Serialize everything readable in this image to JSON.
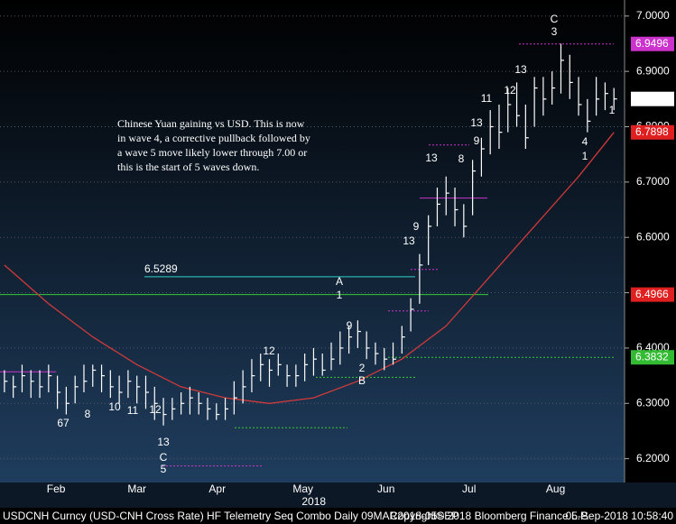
{
  "chart_data": {
    "type": "ohlc",
    "bars": {
      "color": "#ffffff",
      "high": [
        6.36,
        6.35,
        6.37,
        6.36,
        6.36,
        6.37,
        6.35,
        6.33,
        6.35,
        6.37,
        6.37,
        6.37,
        6.36,
        6.35,
        6.36,
        6.35,
        6.35,
        6.33,
        6.31,
        6.31,
        6.32,
        6.33,
        6.32,
        6.31,
        6.3,
        6.31,
        6.34,
        6.36,
        6.38,
        6.39,
        6.38,
        6.39,
        6.37,
        6.37,
        6.39,
        6.4,
        6.39,
        6.41,
        6.43,
        6.44,
        6.45,
        6.43,
        6.41,
        6.4,
        6.41,
        6.44,
        6.49,
        6.57,
        6.64,
        6.69,
        6.71,
        6.69,
        6.66,
        6.74,
        6.78,
        6.83,
        6.84,
        6.87,
        6.88,
        6.84,
        6.89,
        6.89,
        6.9,
        6.95,
        6.93,
        6.89,
        6.85,
        6.89,
        6.88,
        6.87
      ],
      "low": [
        6.32,
        6.31,
        6.32,
        6.31,
        6.31,
        6.32,
        6.29,
        6.28,
        6.3,
        6.32,
        6.33,
        6.32,
        6.31,
        6.3,
        6.31,
        6.3,
        6.29,
        6.27,
        6.26,
        6.27,
        6.28,
        6.28,
        6.28,
        6.27,
        6.27,
        6.27,
        6.28,
        6.3,
        6.32,
        6.34,
        6.33,
        6.35,
        6.33,
        6.33,
        6.34,
        6.35,
        6.35,
        6.36,
        6.37,
        6.39,
        6.4,
        6.38,
        6.37,
        6.36,
        6.37,
        6.39,
        6.43,
        6.48,
        6.55,
        6.62,
        6.64,
        6.62,
        6.6,
        6.64,
        6.71,
        6.75,
        6.76,
        6.79,
        6.8,
        6.76,
        6.8,
        6.82,
        6.84,
        6.86,
        6.85,
        6.82,
        6.79,
        6.82,
        6.83,
        6.83
      ],
      "close": [
        6.34,
        6.33,
        6.35,
        6.34,
        6.33,
        6.35,
        6.32,
        6.3,
        6.33,
        6.34,
        6.36,
        6.35,
        6.33,
        6.32,
        6.34,
        6.33,
        6.32,
        6.3,
        6.28,
        6.29,
        6.3,
        6.31,
        6.3,
        6.29,
        6.28,
        6.29,
        6.31,
        6.33,
        6.35,
        6.37,
        6.36,
        6.37,
        6.35,
        6.35,
        6.37,
        6.38,
        6.36,
        6.38,
        6.4,
        6.42,
        6.43,
        6.4,
        6.39,
        6.38,
        6.38,
        6.42,
        6.47,
        6.55,
        6.62,
        6.66,
        6.68,
        6.65,
        6.62,
        6.72,
        6.76,
        6.8,
        6.79,
        6.84,
        6.82,
        6.78,
        6.87,
        6.85,
        6.87,
        6.92,
        6.88,
        6.84,
        6.81,
        6.85,
        6.86,
        6.8502
      ]
    },
    "moving_average": {
      "color": "#d03a3a",
      "x": [
        0,
        5,
        10,
        15,
        20,
        25,
        30,
        35,
        40,
        45,
        50,
        55,
        60,
        65,
        69
      ],
      "values": [
        6.55,
        6.48,
        6.42,
        6.37,
        6.33,
        6.31,
        6.3,
        6.31,
        6.34,
        6.38,
        6.44,
        6.53,
        6.62,
        6.71,
        6.7898
      ]
    },
    "levels": [
      {
        "value": 6.4966,
        "color": "#33cc33",
        "style": "solid",
        "tag": "#e02020"
      },
      {
        "value": 6.5289,
        "color": "#33cccc",
        "style": "solid",
        "text": true
      },
      {
        "value": 6.9496,
        "color": "#cc33cc",
        "style": "dotted",
        "tag": "#cc33cc"
      },
      {
        "value": 6.3832,
        "color": "#33cc33",
        "style": "dotted",
        "tag": "#33bb33"
      },
      {
        "value": 6.187,
        "color": "#cc33cc",
        "style": "dotted"
      },
      {
        "value": 6.256,
        "color": "#33cc33",
        "style": "dotted"
      },
      {
        "value": 6.347,
        "color": "#33cc33",
        "style": "dotted"
      },
      {
        "value": 6.467,
        "color": "#cc33cc",
        "style": "dotted"
      },
      {
        "value": 6.542,
        "color": "#cc33cc",
        "style": "dotted"
      },
      {
        "value": 6.767,
        "color": "#cc33cc",
        "style": "dotted"
      },
      {
        "value": 6.671,
        "color": "#cc33cc",
        "style": "solid"
      },
      {
        "value": 6.357,
        "color": "#cc33cc",
        "style": "solid"
      }
    ],
    "xlim": [
      -0.5,
      70
    ],
    "ylim": [
      6.157,
      7.029
    ],
    "xticks": [
      {
        "value": 5.85,
        "label": "Feb"
      },
      {
        "value": 15.0,
        "label": "Mar"
      },
      {
        "value": 24.1,
        "label": "Apr"
      },
      {
        "value": 33.8,
        "label": "May"
      },
      {
        "value": 43.2,
        "label": "Jun"
      },
      {
        "value": 52.6,
        "label": "Jul"
      },
      {
        "value": 62.4,
        "label": "Aug"
      }
    ],
    "year_label": "2018",
    "yticks": [
      {
        "value": 6.2,
        "label": "6.2000"
      },
      {
        "value": 6.3,
        "label": "6.3000"
      },
      {
        "value": 6.4,
        "label": "6.4000"
      },
      {
        "value": 6.5,
        "label": "6.5000"
      },
      {
        "value": 6.6,
        "label": "6.6000"
      },
      {
        "value": 6.7,
        "label": "6.7000"
      },
      {
        "value": 6.8,
        "label": "6.8000"
      },
      {
        "value": 6.9,
        "label": "6.9000"
      },
      {
        "value": 7.0,
        "label": "7.0000"
      }
    ],
    "grid": true,
    "note": [
      "Chinese Yuan gaining vs USD.  This is now",
      "in wave 4, a corrective pullback followed by",
      "a wave 5 move likely lower through 7.00 or",
      "this is the start of 5 waves down."
    ],
    "annotations": [
      {
        "text": "13",
        "color": "#e03030"
      },
      {
        "text": "13",
        "color": "#e03030"
      },
      {
        "text": "13",
        "color": "#cc33cc"
      },
      {
        "text": "13",
        "color": "#cc33cc"
      },
      {
        "text": "13",
        "color": "#cc33cc"
      },
      {
        "text": "C",
        "color": "#33cccc"
      },
      {
        "text": "5",
        "color": "#e6d33a"
      },
      {
        "text": "C",
        "color": "#e6d33a"
      },
      {
        "text": "3",
        "color": "#33cccc"
      },
      {
        "text": "A",
        "color": "#e6d33a"
      },
      {
        "text": "1",
        "color": "#33cccc"
      },
      {
        "text": "B",
        "color": "#e6d33a"
      },
      {
        "text": "2",
        "color": "#33cccc"
      },
      {
        "text": "1",
        "color": "#e6d33a"
      },
      {
        "text": "4",
        "color": "#33cccc"
      },
      {
        "text": "9",
        "color": "#33cc33"
      },
      {
        "text": "9",
        "color": "#33cc33"
      },
      {
        "text": "12",
        "color": "#e03030"
      },
      {
        "text": "11",
        "color": "#e03030"
      },
      {
        "text": "9",
        "color": "#e03030"
      },
      {
        "text": "8",
        "color": "#e03030"
      },
      {
        "text": "1",
        "color": "#33cc33"
      },
      {
        "text": "12",
        "color": "#e03030"
      },
      {
        "text": "67",
        "color": "#e03030"
      },
      {
        "text": "8",
        "color": "#e03030"
      },
      {
        "text": "10",
        "color": "#e03030"
      },
      {
        "text": "11",
        "color": "#e03030"
      },
      {
        "text": "12",
        "color": "#e03030"
      }
    ],
    "footer": [
      "USDCNH Curncy (USD-CNH Cross Rate) HF Telemetry Seq Combo  Daily 09MAR2018-05SEP",
      "Copyright© 2018 Bloomberg Finance L.P.",
      "05-Sep-2018 10:58:40"
    ]
  }
}
